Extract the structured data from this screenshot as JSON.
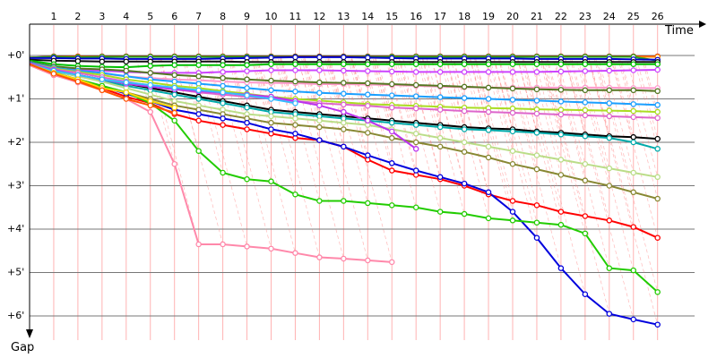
{
  "chart_data": {
    "type": "line",
    "title": "",
    "xlabel": "Time",
    "ylabel": "Gap",
    "x_tick_labels": [
      "1",
      "2",
      "3",
      "4",
      "5",
      "6",
      "7",
      "8",
      "9",
      "10",
      "11",
      "12",
      "13",
      "14",
      "15",
      "16",
      "17",
      "18",
      "19",
      "20",
      "21",
      "22",
      "23",
      "24",
      "25",
      "26"
    ],
    "y_tick_labels": [
      "+0'",
      "+1'",
      "+2'",
      "+3'",
      "+4'",
      "+5'",
      "+6'"
    ],
    "xlim": [
      0,
      28.3
    ],
    "ylim": [
      0,
      6.4
    ],
    "y_inverted": true,
    "grid": true,
    "lap_marker_color": "#ff8080",
    "series": [
      {
        "color": "#c00000",
        "values": [
          0.05,
          0.02,
          0.02,
          0.02,
          0.02,
          0.02,
          0.02,
          0.02,
          0.02,
          0.02,
          0.02,
          0.02,
          0.02,
          0.02,
          0.02,
          0.02,
          0.02,
          0.02,
          0.02,
          0.02,
          0.02,
          0.02,
          0.02,
          0.02,
          0.02,
          0.02,
          0.02
        ]
      },
      {
        "color": "#ff8c00",
        "values": [
          0.05,
          0.03,
          0.03,
          0.03,
          0.03,
          0.03,
          0.03,
          0.03,
          0.03,
          0.03,
          0.03,
          0.03,
          0.03,
          0.03,
          0.03,
          0.03,
          0.03,
          0.03,
          0.03,
          0.03,
          0.03,
          0.03,
          0.03,
          0.03,
          0.03,
          0.03,
          0.03
        ]
      },
      {
        "color": "#22aa22",
        "values": [
          0.05,
          0.03,
          0.04,
          0.03,
          0.03,
          0.03,
          0.03,
          0.03,
          0.03,
          0.03,
          0.03,
          0.03,
          0.03,
          0.03,
          0.03,
          0.03,
          0.03,
          0.03,
          0.03,
          0.03,
          0.03,
          0.03,
          0.03,
          0.03,
          0.03,
          0.03,
          0.12
        ]
      },
      {
        "color": "#0000cc",
        "values": [
          0.06,
          0.06,
          0.07,
          0.07,
          0.08,
          0.08,
          0.08,
          0.08,
          0.07,
          0.06,
          0.05,
          0.04,
          0.04,
          0.04,
          0.05,
          0.06,
          0.07,
          0.07,
          0.07,
          0.07,
          0.07,
          0.08,
          0.08,
          0.08,
          0.08,
          0.09,
          0.1
        ]
      },
      {
        "color": "#111111",
        "values": [
          0.1,
          0.12,
          0.13,
          0.14,
          0.14,
          0.14,
          0.14,
          0.14,
          0.14,
          0.15,
          0.15,
          0.15,
          0.15,
          0.15,
          0.15,
          0.15,
          0.15,
          0.15,
          0.15,
          0.15,
          0.15,
          0.15,
          0.15,
          0.15,
          0.15,
          0.15,
          0.15
        ]
      },
      {
        "color": "#00c000",
        "values": [
          0.12,
          0.2,
          0.24,
          0.26,
          0.27,
          0.24,
          0.22,
          0.22,
          0.22,
          0.22,
          0.2,
          0.2,
          0.2,
          0.2,
          0.2,
          0.2,
          0.2,
          0.2,
          0.2,
          0.2,
          0.2,
          0.2,
          0.2,
          0.2,
          0.2,
          0.2,
          0.2
        ]
      },
      {
        "color": "#cc44ff",
        "values": [
          0.14,
          0.3,
          0.33,
          0.35,
          0.38,
          0.4,
          0.4,
          0.4,
          0.38,
          0.36,
          0.34,
          0.34,
          0.34,
          0.35,
          0.36,
          0.37,
          0.38,
          0.38,
          0.38,
          0.38,
          0.38,
          0.38,
          0.37,
          0.36,
          0.35,
          0.34,
          0.33
        ]
      },
      {
        "color": "#ff99cc",
        "values": [
          0.15,
          0.3,
          0.36,
          0.42,
          0.48,
          0.52,
          0.55,
          0.57,
          0.6,
          0.62,
          0.63,
          0.64,
          0.66,
          0.66,
          0.67,
          0.68,
          0.7,
          0.72,
          0.73,
          0.74,
          0.74,
          0.74,
          0.74,
          0.74,
          0.74,
          0.75,
          0.75
        ]
      },
      {
        "color": "#557722",
        "values": [
          0.15,
          0.25,
          0.3,
          0.32,
          0.35,
          0.4,
          0.45,
          0.48,
          0.52,
          0.55,
          0.58,
          0.6,
          0.62,
          0.63,
          0.64,
          0.66,
          0.68,
          0.7,
          0.72,
          0.74,
          0.76,
          0.78,
          0.79,
          0.8,
          0.8,
          0.8,
          0.82
        ]
      },
      {
        "color": "#1a9fff",
        "values": [
          0.16,
          0.28,
          0.35,
          0.4,
          0.48,
          0.55,
          0.6,
          0.65,
          0.7,
          0.75,
          0.8,
          0.83,
          0.86,
          0.88,
          0.9,
          0.92,
          0.94,
          0.96,
          0.98,
          1.0,
          1.02,
          1.04,
          1.06,
          1.08,
          1.1,
          1.12,
          1.14
        ]
      },
      {
        "color": "#aadd22",
        "values": [
          0.18,
          0.3,
          0.38,
          0.45,
          0.55,
          0.62,
          0.7,
          0.75,
          0.82,
          0.88,
          0.95,
          1.0,
          1.04,
          1.08,
          1.12,
          1.14,
          1.16,
          1.18,
          1.2,
          1.21,
          1.22,
          1.24,
          1.25,
          1.26,
          1.27,
          1.28,
          1.3
        ]
      },
      {
        "color": "#dd66cc",
        "values": [
          0.18,
          0.32,
          0.4,
          0.5,
          0.6,
          0.7,
          0.78,
          0.85,
          0.9,
          0.95,
          1.0,
          1.05,
          1.1,
          1.13,
          1.16,
          1.2,
          1.22,
          1.25,
          1.28,
          1.3,
          1.32,
          1.34,
          1.36,
          1.38,
          1.4,
          1.42,
          1.44
        ]
      },
      {
        "color": "#000000",
        "values": [
          0.2,
          0.35,
          0.45,
          0.55,
          0.65,
          0.75,
          0.85,
          0.95,
          1.05,
          1.15,
          1.25,
          1.3,
          1.35,
          1.4,
          1.45,
          1.5,
          1.55,
          1.6,
          1.65,
          1.68,
          1.7,
          1.75,
          1.78,
          1.82,
          1.86,
          1.88,
          1.92
        ]
      },
      {
        "color": "#00aaaa",
        "values": [
          0.2,
          0.36,
          0.48,
          0.58,
          0.7,
          0.8,
          0.9,
          1.0,
          1.1,
          1.2,
          1.3,
          1.35,
          1.4,
          1.45,
          1.5,
          1.55,
          1.6,
          1.65,
          1.7,
          1.72,
          1.75,
          1.78,
          1.82,
          1.86,
          1.9,
          2.0,
          2.15
        ]
      },
      {
        "color": "#bbdd88",
        "values": [
          0.2,
          0.35,
          0.48,
          0.6,
          0.75,
          0.9,
          1.05,
          1.15,
          1.25,
          1.35,
          1.4,
          1.45,
          1.5,
          1.55,
          1.6,
          1.7,
          1.8,
          1.9,
          2.0,
          2.1,
          2.2,
          2.3,
          2.4,
          2.5,
          2.6,
          2.7,
          2.8
        ]
      },
      {
        "color": "#888833",
        "values": [
          0.22,
          0.4,
          0.55,
          0.7,
          0.85,
          1.0,
          1.15,
          1.25,
          1.35,
          1.45,
          1.55,
          1.6,
          1.65,
          1.7,
          1.78,
          1.9,
          2.0,
          2.1,
          2.22,
          2.35,
          2.5,
          2.62,
          2.75,
          2.88,
          3.0,
          3.15,
          3.3
        ]
      },
      {
        "color": "#ff0000",
        "values": [
          0.22,
          0.45,
          0.6,
          0.75,
          0.95,
          1.1,
          1.35,
          1.5,
          1.6,
          1.7,
          1.8,
          1.9,
          1.95,
          2.1,
          2.4,
          2.65,
          2.75,
          2.85,
          3.0,
          3.2,
          3.35,
          3.45,
          3.6,
          3.7,
          3.8,
          3.95,
          4.2
        ]
      },
      {
        "color": "#0000dd",
        "values": [
          0.2,
          0.4,
          0.55,
          0.72,
          0.88,
          1.05,
          1.25,
          1.35,
          1.45,
          1.55,
          1.7,
          1.8,
          1.95,
          2.1,
          2.3,
          2.48,
          2.65,
          2.8,
          2.95,
          3.15,
          3.6,
          4.2,
          4.9,
          5.5,
          5.95,
          6.08,
          6.2
        ]
      },
      {
        "color": "#22cc00",
        "values": [
          0.2,
          0.4,
          0.55,
          0.7,
          0.85,
          1.1,
          1.5,
          2.2,
          2.7,
          2.85,
          2.9,
          3.2,
          3.35,
          3.35,
          3.4,
          3.45,
          3.5,
          3.6,
          3.65,
          3.75,
          3.8,
          3.85,
          3.9,
          4.1,
          4.9,
          4.95,
          5.45
        ]
      },
      {
        "color": "#ff88aa",
        "values": [
          0.22,
          0.45,
          0.62,
          0.8,
          1.0,
          1.3,
          2.5,
          4.35,
          4.35,
          4.4,
          4.45,
          4.55,
          4.65,
          4.68,
          4.72,
          4.76
        ]
      },
      {
        "color": "#bb33ee",
        "values": [
          0.18,
          0.33,
          0.45,
          0.55,
          0.65,
          0.72,
          0.78,
          0.82,
          0.86,
          0.9,
          0.95,
          1.05,
          1.15,
          1.3,
          1.5,
          1.75,
          2.15
        ]
      },
      {
        "color": "#33bbff",
        "values": [
          0.2,
          0.35,
          0.45,
          0.55,
          0.62,
          0.68,
          0.74,
          0.8,
          0.85,
          0.92,
          1.0,
          1.1
        ]
      },
      {
        "color": "#ffd700",
        "values": [
          0.2,
          0.4,
          0.55,
          0.75,
          0.85,
          1.05,
          1.2
        ]
      },
      {
        "color": "#ff5500",
        "values": [
          0.2,
          0.42,
          0.6,
          0.8,
          1.0,
          1.15,
          1.32
        ]
      }
    ]
  }
}
